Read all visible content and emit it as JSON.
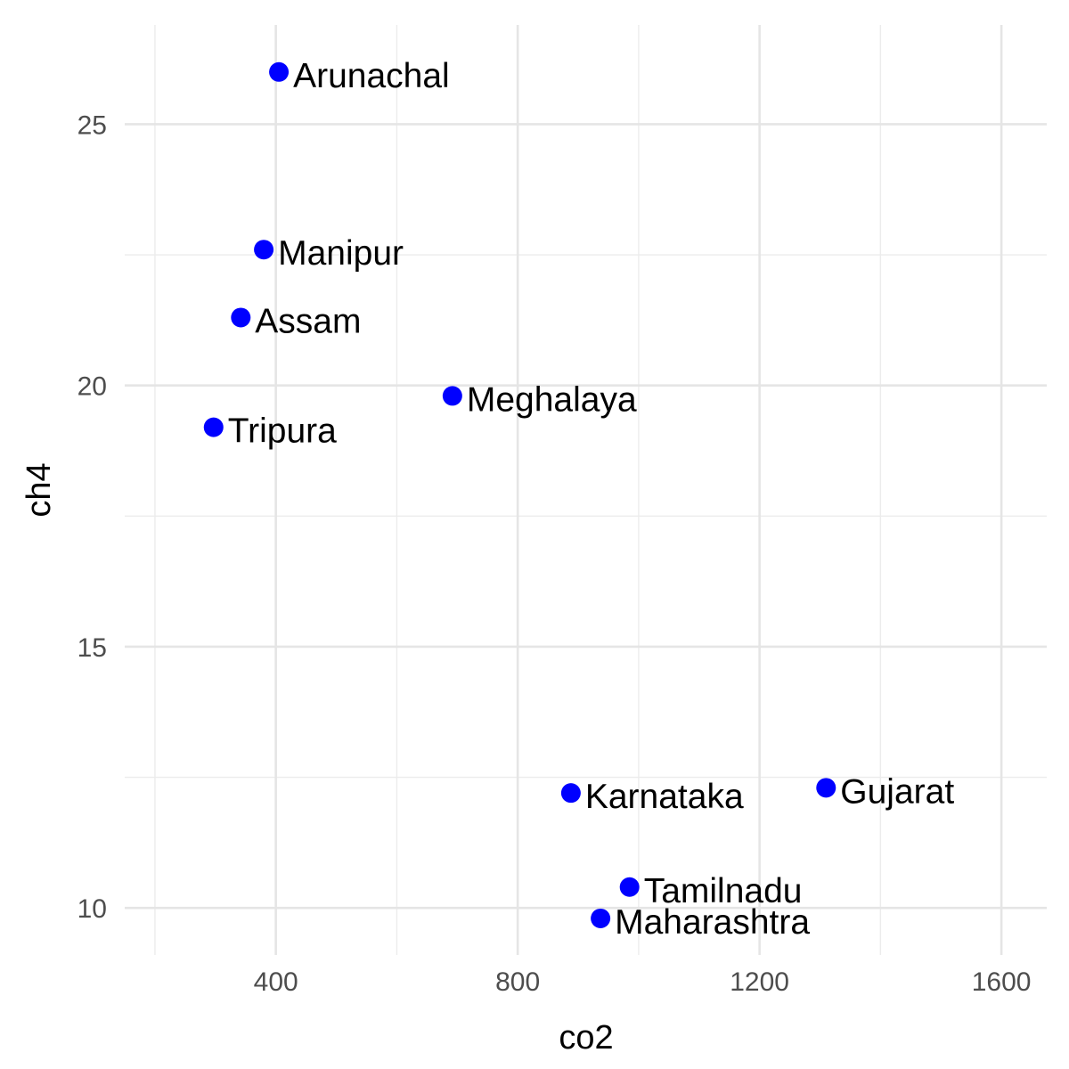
{
  "chart_data": {
    "type": "scatter",
    "xlabel": "co2",
    "ylabel": "ch4",
    "xlim": [
      150,
      1675
    ],
    "ylim": [
      9.1,
      26.9
    ],
    "x_ticks": [
      400,
      800,
      1200,
      1600
    ],
    "y_ticks": [
      10,
      15,
      20,
      25
    ],
    "x_minor_ticks": [
      200,
      600,
      1000,
      1400
    ],
    "y_minor_ticks": [
      12.5,
      17.5,
      22.5
    ],
    "grid": true,
    "legend": "none",
    "point_color": "#0000ff",
    "points": [
      {
        "label": "Arunachal",
        "x": 405,
        "y": 26.0
      },
      {
        "label": "Manipur",
        "x": 380,
        "y": 22.6
      },
      {
        "label": "Assam",
        "x": 342,
        "y": 21.3
      },
      {
        "label": "Meghalaya",
        "x": 692,
        "y": 19.8
      },
      {
        "label": "Tripura",
        "x": 297,
        "y": 19.2
      },
      {
        "label": "Karnataka",
        "x": 888,
        "y": 12.2
      },
      {
        "label": "Gujarat",
        "x": 1310,
        "y": 12.3
      },
      {
        "label": "Tamilnadu",
        "x": 985,
        "y": 10.4
      },
      {
        "label": "Maharashtra",
        "x": 937,
        "y": 9.8
      }
    ]
  }
}
